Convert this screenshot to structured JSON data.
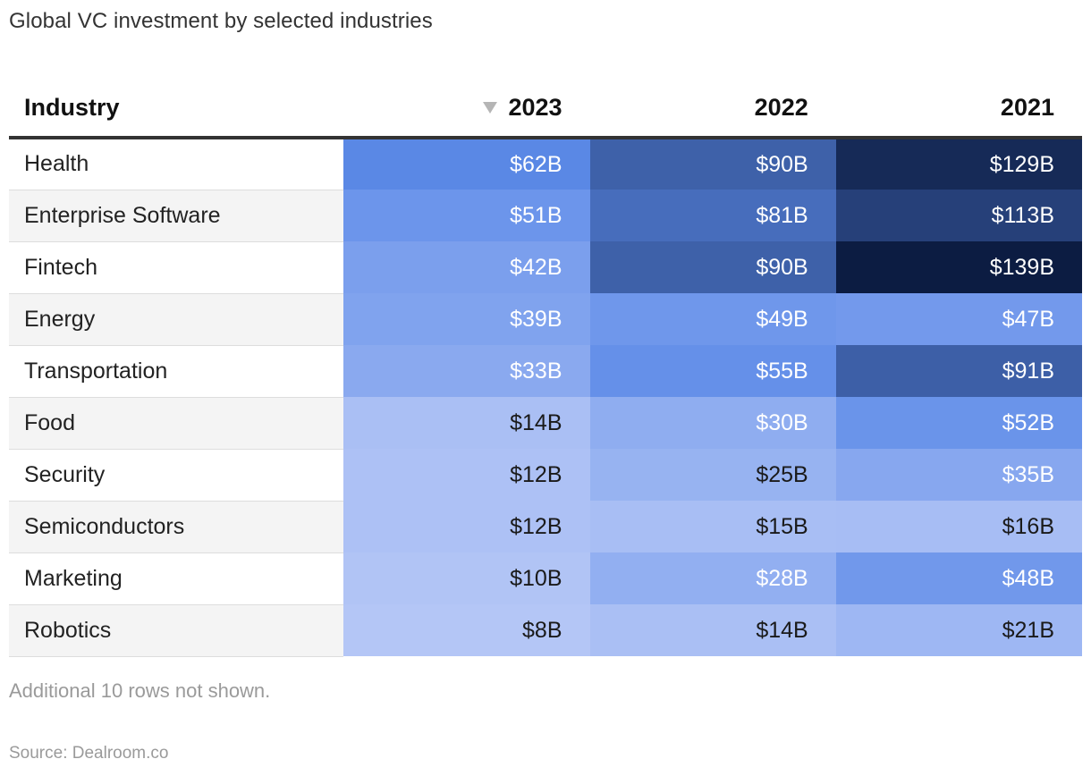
{
  "title": "Global VC investment by selected industries",
  "header": {
    "industry": "Industry",
    "years": [
      "2023",
      "2022",
      "2021"
    ],
    "sorted_column": "2023",
    "sort_icon": "sort-descending-icon"
  },
  "chart_data": {
    "type": "table",
    "title": "Global VC investment by selected industries",
    "columns": [
      "Industry",
      "2023",
      "2022",
      "2021"
    ],
    "rows": [
      {
        "industry": "Health",
        "values": [
          62,
          90,
          129
        ]
      },
      {
        "industry": "Enterprise Software",
        "values": [
          51,
          81,
          113
        ]
      },
      {
        "industry": "Fintech",
        "values": [
          42,
          90,
          139
        ]
      },
      {
        "industry": "Energy",
        "values": [
          39,
          49,
          47
        ]
      },
      {
        "industry": "Transportation",
        "values": [
          33,
          55,
          91
        ]
      },
      {
        "industry": "Food",
        "values": [
          14,
          30,
          52
        ]
      },
      {
        "industry": "Security",
        "values": [
          12,
          25,
          35
        ]
      },
      {
        "industry": "Semiconductors",
        "values": [
          12,
          15,
          16
        ]
      },
      {
        "industry": "Marketing",
        "values": [
          10,
          28,
          48
        ]
      },
      {
        "industry": "Robotics",
        "values": [
          8,
          14,
          21
        ]
      }
    ],
    "value_prefix": "$",
    "value_suffix": "B",
    "color_scale": {
      "low": "#b4c6f6",
      "mid": "#5c8ae8",
      "high": "#0c1c42",
      "domain": [
        8,
        139
      ]
    }
  },
  "note": "Additional 10 rows not shown.",
  "source": "Source: Dealroom.co"
}
